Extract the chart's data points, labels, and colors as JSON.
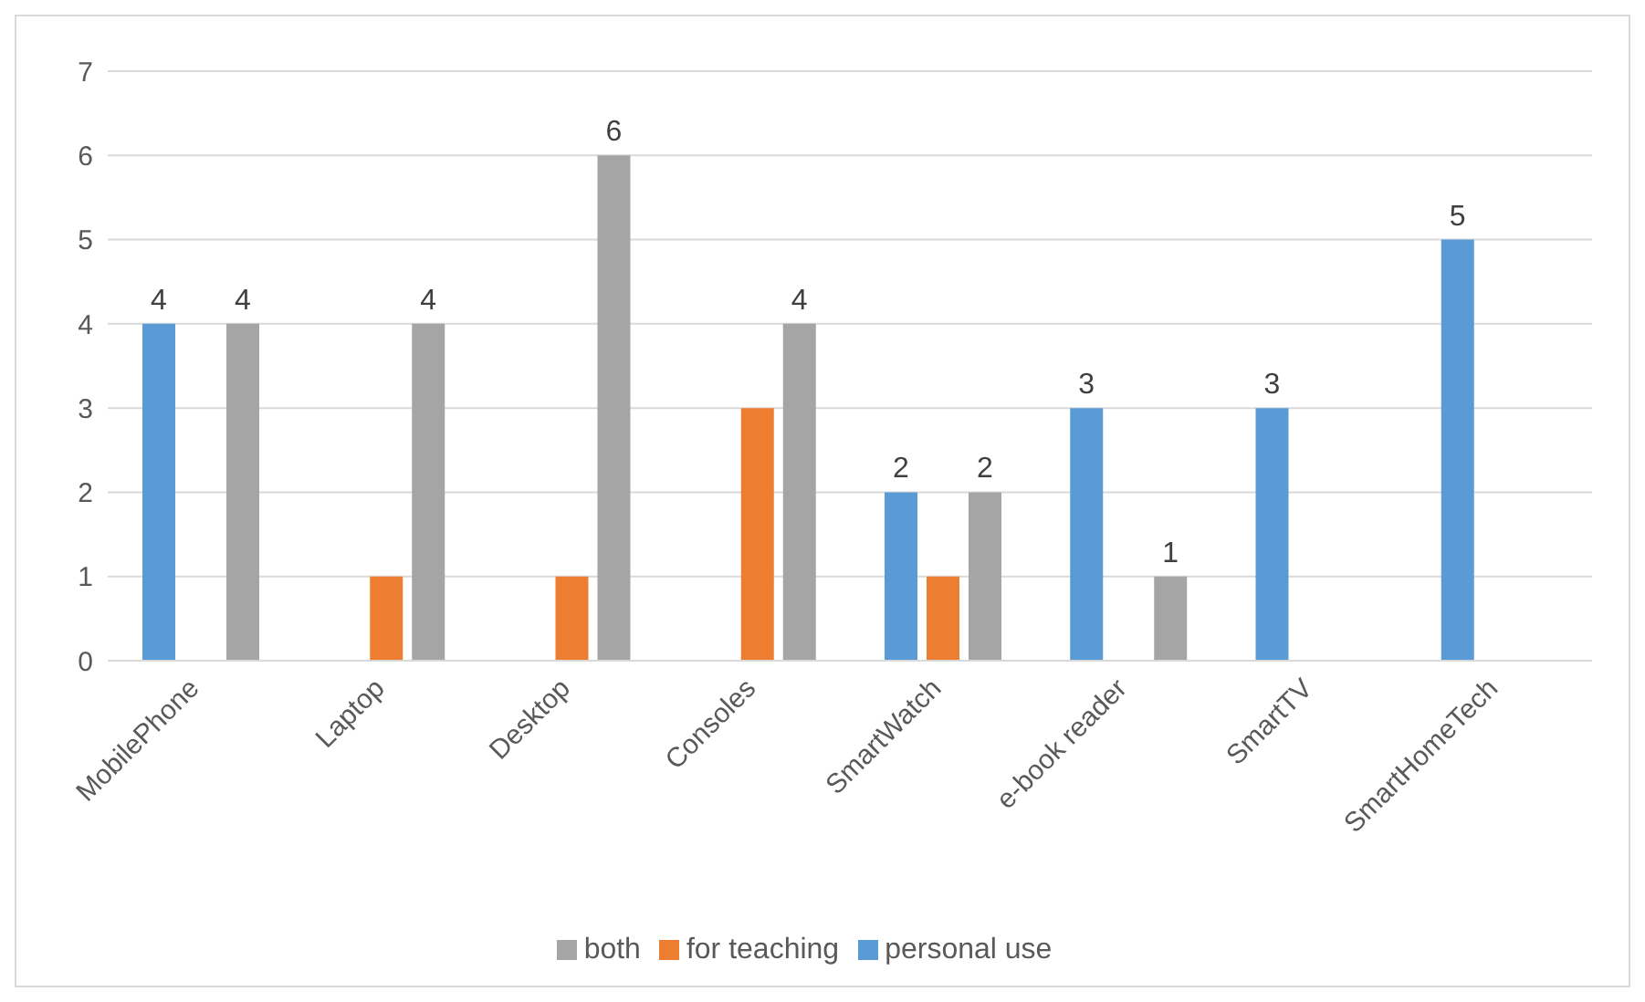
{
  "chart_data": {
    "type": "bar",
    "categories": [
      "MobilePhone",
      "Laptop",
      "Desktop",
      "Consoles",
      "SmartWatch",
      "e-book reader",
      "SmartTV",
      "SmartHomeTech"
    ],
    "series": [
      {
        "name": "personal use",
        "color": "#5b9bd5",
        "values": [
          4,
          null,
          null,
          null,
          2,
          3,
          3,
          5
        ],
        "value_labels": [
          "4",
          null,
          null,
          null,
          "2",
          "3",
          "3",
          "5"
        ]
      },
      {
        "name": "for teaching",
        "color": "#ed7d31",
        "values": [
          null,
          1,
          1,
          3,
          1,
          null,
          null,
          null
        ],
        "value_labels": [
          null,
          null,
          null,
          null,
          null,
          null,
          null,
          null
        ]
      },
      {
        "name": "both",
        "color": "#a5a5a5",
        "values": [
          4,
          4,
          6,
          4,
          2,
          1,
          null,
          null
        ],
        "value_labels": [
          "4",
          "4",
          "6",
          "4",
          "2",
          "1",
          null,
          null
        ]
      }
    ],
    "ylim": [
      0,
      7
    ],
    "yticks": [
      0,
      1,
      2,
      3,
      4,
      5,
      6,
      7
    ],
    "grid": "y",
    "legend": "bottom"
  }
}
